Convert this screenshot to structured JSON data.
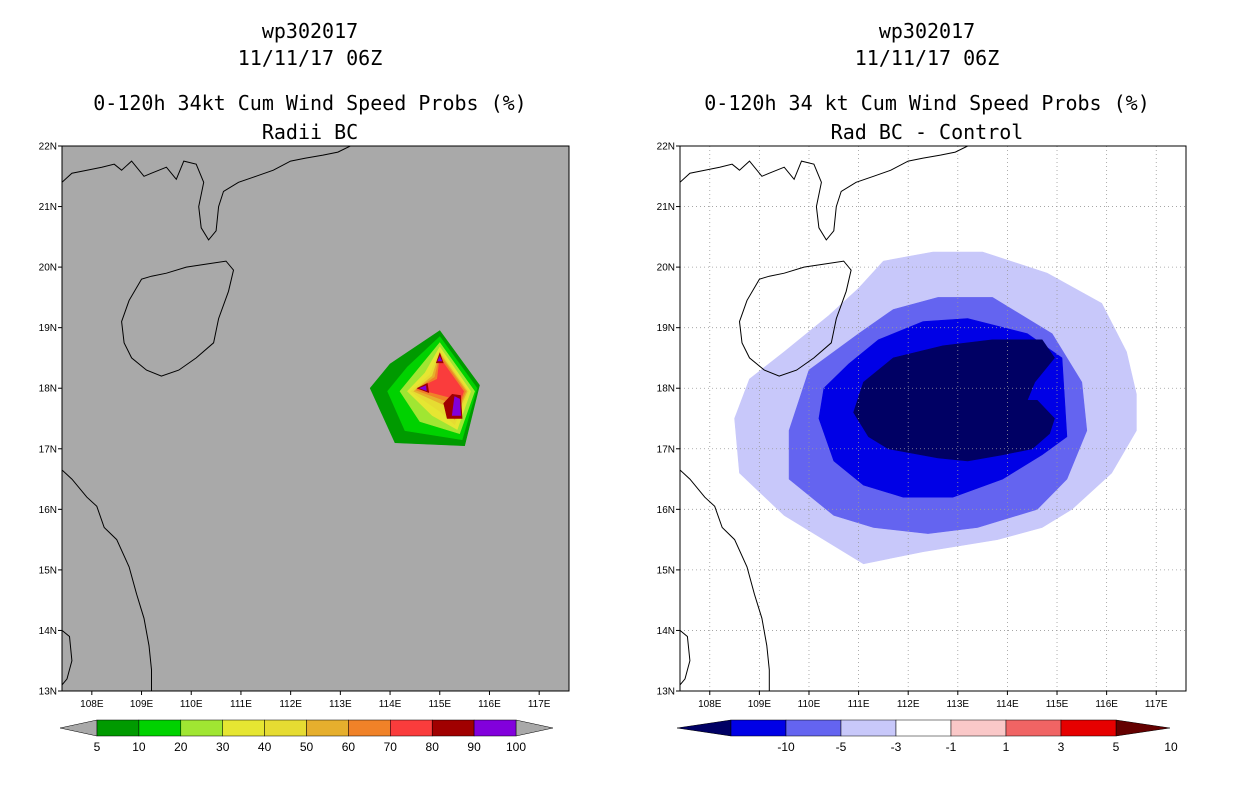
{
  "chart_data": [
    {
      "type": "contour_map",
      "title_lines": [
        "wp302017",
        "11/11/17 06Z",
        "0-120h 34kt Cum Wind Speed Probs (%)",
        "Radii BC"
      ],
      "x_ticks": [
        "108E",
        "109E",
        "110E",
        "111E",
        "112E",
        "113E",
        "114E",
        "115E",
        "116E",
        "117E"
      ],
      "y_ticks": [
        "22N",
        "21N",
        "20N",
        "19N",
        "18N",
        "17N",
        "16N",
        "15N",
        "14N",
        "13N"
      ],
      "lon_range": [
        107.4,
        117.6
      ],
      "lat_range": [
        13,
        22
      ],
      "background_color": "#a9a9a9",
      "colorbar": {
        "labels": [
          "5",
          "10",
          "20",
          "30",
          "40",
          "50",
          "60",
          "70",
          "80",
          "90",
          "100"
        ],
        "colors": [
          "#009a00",
          "#00d200",
          "#a0e632",
          "#e6e632",
          "#e6dc32",
          "#e6af2d",
          "#f08228",
          "#fa3c3c",
          "#a00000",
          "#8200dc"
        ]
      },
      "contours": [
        {
          "level": 5,
          "color": "#009a00",
          "polygon": [
            [
              115,
              18.95
            ],
            [
              115.8,
              18.05
            ],
            [
              115.5,
              17.05
            ],
            [
              114.1,
              17.1
            ],
            [
              113.6,
              18.0
            ],
            [
              114.0,
              18.4
            ]
          ]
        },
        {
          "level": 10,
          "color": "#00d200",
          "polygon": [
            [
              115,
              18.85
            ],
            [
              115.75,
              18.0
            ],
            [
              115.45,
              17.15
            ],
            [
              114.3,
              17.3
            ],
            [
              113.95,
              17.95
            ],
            [
              114.35,
              18.35
            ]
          ]
        },
        {
          "level": 20,
          "color": "#a0e632",
          "polygon": [
            [
              115,
              18.75
            ],
            [
              115.7,
              17.95
            ],
            [
              115.4,
              17.25
            ],
            [
              114.6,
              17.45
            ],
            [
              114.2,
              17.95
            ],
            [
              114.55,
              18.3
            ]
          ]
        },
        {
          "level": 30,
          "color": "#e6e632",
          "polygon": [
            [
              115,
              18.68
            ],
            [
              115.62,
              17.95
            ],
            [
              115.35,
              17.32
            ],
            [
              114.85,
              17.55
            ],
            [
              114.35,
              17.95
            ],
            [
              114.7,
              18.25
            ]
          ]
        },
        {
          "level": 40,
          "color": "#e6dc32",
          "polygon": [
            [
              115,
              18.62
            ],
            [
              115.58,
              17.95
            ],
            [
              115.3,
              17.4
            ],
            [
              115.0,
              17.62
            ],
            [
              114.42,
              17.95
            ],
            [
              114.8,
              18.22
            ]
          ]
        },
        {
          "level": 50,
          "color": "#e6af2d",
          "polygon": [
            [
              115,
              18.58
            ],
            [
              115.55,
              17.95
            ],
            [
              115.3,
              17.48
            ],
            [
              115.1,
              17.72
            ],
            [
              114.48,
              17.95
            ],
            [
              114.85,
              18.2
            ]
          ]
        },
        {
          "level": 60,
          "color": "#f08228",
          "polygon": [
            [
              115,
              18.55
            ],
            [
              115.52,
              17.95
            ],
            [
              115.3,
              17.52
            ],
            [
              115.15,
              17.78
            ],
            [
              114.52,
              17.97
            ],
            [
              114.9,
              18.18
            ]
          ]
        },
        {
          "level": 70,
          "color": "#fa3c3c",
          "polygon": [
            [
              115,
              18.5
            ],
            [
              115.48,
              17.95
            ],
            [
              115.32,
              17.56
            ],
            [
              115.2,
              17.85
            ],
            [
              114.55,
              17.99
            ],
            [
              114.95,
              18.15
            ]
          ]
        },
        {
          "level": 80,
          "color": "#a00000",
          "polygon": [
            [
              115.25,
              17.9
            ],
            [
              115.42,
              17.88
            ],
            [
              115.45,
              17.5
            ],
            [
              115.15,
              17.5
            ],
            [
              115.08,
              17.75
            ]
          ]
        },
        {
          "level": 80,
          "color": "#a00000",
          "polygon": [
            [
              114.55,
              18.0
            ],
            [
              114.75,
              18.08
            ],
            [
              114.78,
              17.93
            ]
          ]
        },
        {
          "level": 80,
          "color": "#a00000",
          "polygon": [
            [
              115.0,
              18.58
            ],
            [
              115.07,
              18.42
            ],
            [
              114.93,
              18.42
            ]
          ]
        },
        {
          "level": 90,
          "color": "#8200dc",
          "polygon": [
            [
              115.3,
              17.86
            ],
            [
              115.4,
              17.82
            ],
            [
              115.42,
              17.55
            ],
            [
              115.25,
              17.55
            ]
          ]
        },
        {
          "level": 90,
          "color": "#8200dc",
          "polygon": [
            [
              114.6,
              18.0
            ],
            [
              114.72,
              18.04
            ],
            [
              114.73,
              17.96
            ]
          ]
        },
        {
          "level": 90,
          "color": "#8200dc",
          "polygon": [
            [
              115.0,
              18.52
            ],
            [
              115.04,
              18.45
            ],
            [
              114.96,
              18.45
            ]
          ]
        }
      ]
    },
    {
      "type": "contour_map",
      "title_lines": [
        "wp302017",
        "11/11/17 06Z",
        "0-120h 34 kt Cum Wind Speed Probs (%)",
        "Rad BC - Control"
      ],
      "x_ticks": [
        "108E",
        "109E",
        "110E",
        "111E",
        "112E",
        "113E",
        "114E",
        "115E",
        "116E",
        "117E"
      ],
      "y_ticks": [
        "22N",
        "21N",
        "20N",
        "19N",
        "18N",
        "17N",
        "16N",
        "15N",
        "14N",
        "13N"
      ],
      "lon_range": [
        107.4,
        117.6
      ],
      "lat_range": [
        13,
        22
      ],
      "background_color": "#ffffff",
      "colorbar": {
        "labels": [
          "-10",
          "-5",
          "-3",
          "-1",
          "1",
          "3",
          "5",
          "10"
        ],
        "colors": [
          "#000064",
          "#0000e6",
          "#6464f0",
          "#c8c8fa",
          "#ffffff",
          "#fac8c8",
          "#f06464",
          "#e60000",
          "#640000"
        ]
      },
      "contours": [
        {
          "level": -1,
          "color": "#c8c8fa",
          "polygon": [
            [
              108.5,
              17.5
            ],
            [
              108.8,
              18.15
            ],
            [
              109.5,
              18.6
            ],
            [
              110.4,
              19.2
            ],
            [
              111,
              19.65
            ],
            [
              111.5,
              20.1
            ],
            [
              112.5,
              20.25
            ],
            [
              113.5,
              20.25
            ],
            [
              114.8,
              19.9
            ],
            [
              115.9,
              19.4
            ],
            [
              116.4,
              18.6
            ],
            [
              116.6,
              17.9
            ],
            [
              116.6,
              17.3
            ],
            [
              116.1,
              16.6
            ],
            [
              115.3,
              16.0
            ],
            [
              114.7,
              15.7
            ],
            [
              113.8,
              15.5
            ],
            [
              112.3,
              15.3
            ],
            [
              111.1,
              15.1
            ],
            [
              109.5,
              15.9
            ],
            [
              108.6,
              16.6
            ]
          ]
        },
        {
          "level": -3,
          "color": "#6464f0",
          "polygon": [
            [
              109.6,
              16.5
            ],
            [
              109.6,
              17.3
            ],
            [
              110.0,
              18.3
            ],
            [
              111.0,
              18.9
            ],
            [
              111.7,
              19.3
            ],
            [
              112.6,
              19.5
            ],
            [
              113.7,
              19.5
            ],
            [
              114.9,
              18.9
            ],
            [
              115.5,
              18.1
            ],
            [
              115.6,
              17.3
            ],
            [
              115.2,
              16.5
            ],
            [
              114.6,
              16.0
            ],
            [
              113.4,
              15.7
            ],
            [
              112.4,
              15.6
            ],
            [
              111.3,
              15.7
            ],
            [
              110.5,
              15.9
            ]
          ]
        },
        {
          "level": -5,
          "color": "#0000e6",
          "polygon": [
            [
              110.2,
              17.5
            ],
            [
              110.3,
              18.0
            ],
            [
              110.8,
              18.4
            ],
            [
              111.4,
              18.8
            ],
            [
              112.3,
              19.1
            ],
            [
              113.2,
              19.15
            ],
            [
              114.4,
              18.9
            ],
            [
              115.1,
              18.5
            ],
            [
              115.2,
              17.2
            ],
            [
              114.7,
              16.9
            ],
            [
              113.9,
              16.5
            ],
            [
              112.9,
              16.2
            ],
            [
              111.9,
              16.2
            ],
            [
              111.1,
              16.4
            ],
            [
              110.5,
              16.8
            ]
          ]
        },
        {
          "level": -10,
          "color": "#000064",
          "polygon": [
            [
              110.9,
              17.6
            ],
            [
              111.1,
              18.1
            ],
            [
              111.7,
              18.5
            ],
            [
              112.7,
              18.7
            ],
            [
              113.7,
              18.8
            ],
            [
              114.7,
              18.8
            ],
            [
              114.95,
              18.5
            ],
            [
              114.55,
              18.1
            ],
            [
              114.4,
              17.8
            ],
            [
              114.6,
              17.8
            ],
            [
              114.95,
              17.5
            ],
            [
              114.85,
              17.25
            ],
            [
              114.5,
              17.0
            ],
            [
              113.9,
              16.9
            ],
            [
              113.2,
              16.8
            ],
            [
              112.6,
              16.85
            ],
            [
              111.6,
              17.0
            ],
            [
              111.2,
              17.2
            ]
          ]
        }
      ]
    }
  ]
}
